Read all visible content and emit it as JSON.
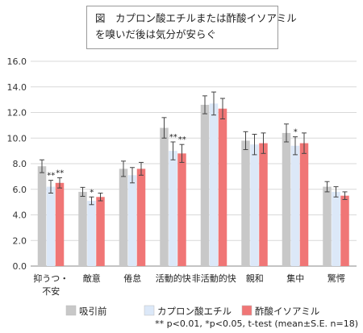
{
  "title": {
    "line1": "図　カプロン酸エチルまたは酢酸イソアミル",
    "line2": "を嗅いだ後は気分が安らぐ"
  },
  "footnote": "** p<0.01, *p<0.05, t-test (mean±S.E. n=18)",
  "chart_data": {
    "type": "bar",
    "title": "図　カプロン酸エチルまたは酢酸イソアミル を嗅いだ後は気分が安らぐ",
    "xlabel": "",
    "ylabel": "",
    "ylim": [
      0,
      16
    ],
    "yticks": [
      "0.0",
      "2.0",
      "4.0",
      "6.0",
      "8.0",
      "10.0",
      "12.0",
      "14.0",
      "16.0"
    ],
    "grid": true,
    "legend_position": "bottom",
    "categories": [
      [
        "抑うつ・",
        "不安"
      ],
      [
        "敵意"
      ],
      [
        "倦怠"
      ],
      [
        "活動的快"
      ],
      [
        "非活動的快"
      ],
      [
        "親和"
      ],
      [
        "集中"
      ],
      [
        "驚愕"
      ]
    ],
    "series": [
      {
        "name": "吸引前",
        "color": "#c8c8c8",
        "values": [
          7.8,
          5.8,
          7.6,
          10.8,
          12.6,
          9.8,
          10.4,
          6.2
        ],
        "errors": [
          0.5,
          0.35,
          0.6,
          0.8,
          0.7,
          0.7,
          0.7,
          0.4
        ]
      },
      {
        "name": "カプロン酸エチル",
        "color": "#dce8f8",
        "values": [
          6.2,
          5.1,
          7.1,
          9.0,
          12.7,
          9.5,
          9.4,
          5.8
        ],
        "errors": [
          0.5,
          0.3,
          0.6,
          0.7,
          0.9,
          0.8,
          0.7,
          0.4
        ]
      },
      {
        "name": "酢酸イソアミル",
        "color": "#f07676",
        "values": [
          6.5,
          5.4,
          7.6,
          8.8,
          12.3,
          9.6,
          9.6,
          5.5
        ],
        "errors": [
          0.4,
          0.3,
          0.5,
          0.7,
          0.8,
          0.8,
          0.8,
          0.3
        ]
      }
    ],
    "significance": [
      {
        "category": 0,
        "series": 1,
        "mark": "**"
      },
      {
        "category": 0,
        "series": 2,
        "mark": "**"
      },
      {
        "category": 1,
        "series": 1,
        "mark": "*"
      },
      {
        "category": 3,
        "series": 1,
        "mark": "**"
      },
      {
        "category": 3,
        "series": 2,
        "mark": "**"
      },
      {
        "category": 6,
        "series": 1,
        "mark": "*"
      }
    ]
  }
}
